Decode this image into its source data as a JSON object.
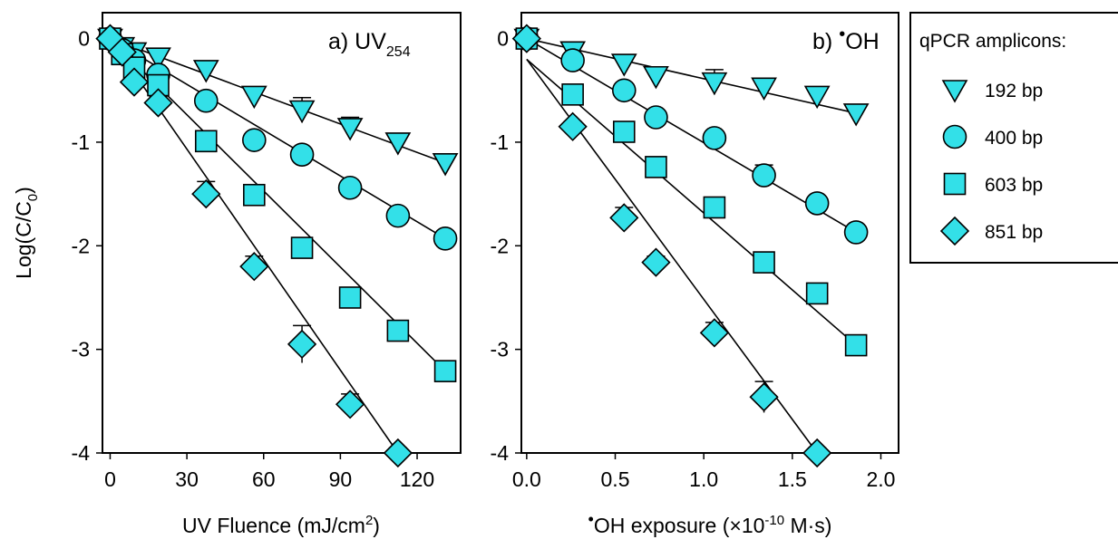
{
  "colors": {
    "marker_fill": "#33e0e8",
    "marker_stroke": "#000000",
    "line": "#000000"
  },
  "ylabel": "Log(C/C0)",
  "legend": {
    "title": "qPCR amplicons:",
    "entries": [
      {
        "marker": "triangle-down",
        "label": "192 bp"
      },
      {
        "marker": "circle",
        "label": "400 bp"
      },
      {
        "marker": "square",
        "label": "603 bp"
      },
      {
        "marker": "diamond",
        "label": "851 bp"
      }
    ]
  },
  "chart_data": [
    {
      "type": "scatter",
      "panel_label": "a) UV254",
      "xlabel": "UV Fluence (mJ/cm2)",
      "ylabel": "Log(C/C0)",
      "xlim": [
        -3,
        137
      ],
      "ylim": [
        -4,
        0.25
      ],
      "x_ticks": [
        "0",
        "30",
        "60",
        "90",
        "120"
      ],
      "y_ticks": [
        "0",
        "-1",
        "-2",
        "-3",
        "-4"
      ],
      "series": [
        {
          "name": "192 bp",
          "marker": "triangle-down",
          "x": [
            0,
            4.7,
            9.4,
            18.8,
            37.5,
            56.3,
            75,
            93.8,
            112.5,
            131
          ],
          "y": [
            0,
            -0.08,
            -0.13,
            -0.18,
            -0.3,
            -0.55,
            -0.69,
            -0.86,
            -1.0,
            -1.2
          ],
          "err": [
            0,
            0.03,
            0.03,
            0.04,
            0.06,
            0.07,
            0.12,
            0.1,
            0.05,
            0.05
          ],
          "fit": [
            [
              0,
              0
            ],
            [
              131,
              -1.2
            ]
          ]
        },
        {
          "name": "400 bp",
          "marker": "circle",
          "x": [
            0,
            4.7,
            9.4,
            18.8,
            37.5,
            56.3,
            75,
            93.8,
            112.5,
            131
          ],
          "y": [
            0,
            -0.11,
            -0.21,
            -0.35,
            -0.6,
            -0.98,
            -1.12,
            -1.44,
            -1.71,
            -1.93
          ],
          "err": [
            0,
            0.03,
            0.04,
            0.05,
            0.06,
            0.05,
            0.05,
            0.05,
            0.05,
            0.05
          ],
          "fit": [
            [
              0,
              0
            ],
            [
              131,
              -1.93
            ]
          ]
        },
        {
          "name": "603 bp",
          "marker": "square",
          "x": [
            0,
            4.7,
            9.4,
            18.8,
            37.5,
            56.3,
            75,
            93.8,
            112.5,
            131
          ],
          "y": [
            0,
            -0.15,
            -0.28,
            -0.45,
            -0.99,
            -1.51,
            -2.02,
            -2.5,
            -2.82,
            -3.21
          ],
          "err": [
            0,
            0.04,
            0.05,
            0.06,
            0.05,
            0.05,
            0.05,
            0.05,
            0.05,
            0.05
          ],
          "fit": [
            [
              0,
              0
            ],
            [
              131,
              -3.21
            ]
          ]
        },
        {
          "name": "851 bp",
          "marker": "diamond",
          "x": [
            0,
            4.7,
            9.4,
            18.8,
            37.5,
            56.3,
            75,
            93.8,
            112.5
          ],
          "y": [
            0,
            -0.13,
            -0.42,
            -0.62,
            -1.5,
            -2.2,
            -2.95,
            -3.53,
            -4.0
          ],
          "err": [
            0,
            0.04,
            0.06,
            0.06,
            0.12,
            0.1,
            0.18,
            0.1,
            0.05
          ],
          "fit": [
            [
              0,
              0
            ],
            [
              112.5,
              -4.0
            ]
          ]
        }
      ]
    },
    {
      "type": "scatter",
      "panel_label": "b) •OH",
      "xlabel": "•OH exposure (×10-10 M·s)",
      "ylabel": "",
      "xlim": [
        -0.03,
        2.1
      ],
      "ylim": [
        -4,
        0.25
      ],
      "x_ticks": [
        "0.0",
        "0.5",
        "1.0",
        "1.5",
        "2.0"
      ],
      "y_ticks": [
        "0",
        "-1",
        "-2",
        "-3",
        "-4"
      ],
      "series": [
        {
          "name": "192 bp",
          "marker": "triangle-down",
          "x": [
            0,
            0.26,
            0.55,
            0.73,
            1.06,
            1.34,
            1.64,
            1.86
          ],
          "y": [
            0,
            -0.12,
            -0.24,
            -0.36,
            -0.42,
            -0.47,
            -0.55,
            -0.72
          ],
          "err": [
            0,
            0.04,
            0.05,
            0.06,
            0.12,
            0.06,
            0.05,
            0.05
          ],
          "fit": [
            [
              0,
              0
            ],
            [
              1.86,
              -0.72
            ]
          ]
        },
        {
          "name": "400 bp",
          "marker": "circle",
          "x": [
            0,
            0.26,
            0.55,
            0.73,
            1.06,
            1.34,
            1.64,
            1.86
          ],
          "y": [
            0,
            -0.21,
            -0.5,
            -0.76,
            -0.96,
            -1.32,
            -1.59,
            -1.87
          ],
          "err": [
            0,
            0.04,
            0.05,
            0.06,
            0.05,
            0.1,
            0.05,
            0.05
          ],
          "fit": [
            [
              0,
              0
            ],
            [
              1.86,
              -1.87
            ]
          ]
        },
        {
          "name": "603 bp",
          "marker": "square",
          "x": [
            0,
            0.26,
            0.55,
            0.73,
            1.06,
            1.34,
            1.64,
            1.86
          ],
          "y": [
            0,
            -0.54,
            -0.9,
            -1.24,
            -1.63,
            -2.16,
            -2.46,
            -2.96
          ],
          "err": [
            0,
            0.04,
            0.05,
            0.06,
            0.05,
            0.05,
            0.05,
            0.05
          ],
          "fit": [
            [
              0,
              -0.2
            ],
            [
              1.86,
              -2.96
            ]
          ]
        },
        {
          "name": "851 bp",
          "marker": "diamond",
          "x": [
            0,
            0.26,
            0.55,
            0.73,
            1.06,
            1.34,
            1.64
          ],
          "y": [
            0,
            -0.85,
            -1.73,
            -2.16,
            -2.84,
            -3.46,
            -4.0
          ],
          "err": [
            0,
            0.05,
            0.1,
            0.06,
            0.1,
            0.15,
            0.05
          ],
          "fit": [
            [
              0,
              -0.2
            ],
            [
              1.64,
              -4.0
            ]
          ]
        }
      ]
    }
  ]
}
